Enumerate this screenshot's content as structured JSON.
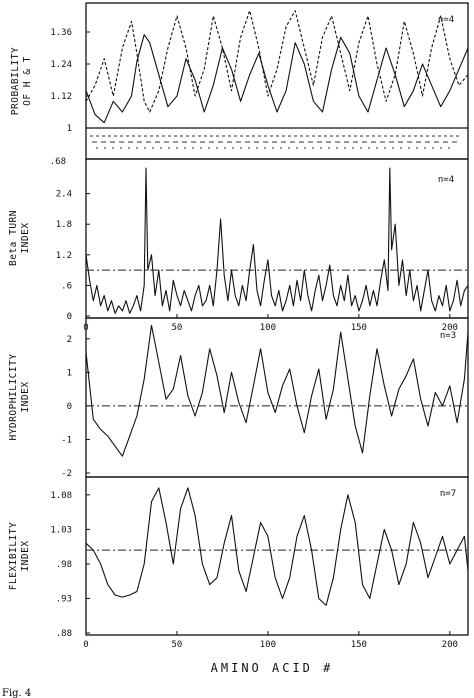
{
  "figure": {
    "xlabel": "AMINO ACID #",
    "caption": "Fig. 4"
  },
  "chart_data": [
    {
      "type": "line",
      "ylabel_lines": [
        "PROBABILITY",
        "OF H & T"
      ],
      "annotation": "n=4",
      "ylim": [
        1.0,
        1.45
      ],
      "yticks": [
        "1",
        "1.12",
        "1.24",
        "1.36"
      ],
      "ytick_values": [
        1.0,
        1.12,
        1.24,
        1.36
      ],
      "bottom_label": ".68",
      "xlim": [
        0,
        210
      ],
      "series": [
        {
          "style": "solid",
          "x": [
            0,
            5,
            10,
            15,
            20,
            25,
            28,
            32,
            35,
            40,
            45,
            50,
            55,
            60,
            65,
            70,
            75,
            80,
            85,
            90,
            95,
            100,
            105,
            110,
            115,
            120,
            125,
            130,
            135,
            140,
            145,
            150,
            155,
            160,
            165,
            170,
            175,
            180,
            185,
            190,
            195,
            200,
            205,
            210
          ],
          "y": [
            1.14,
            1.05,
            1.02,
            1.1,
            1.06,
            1.12,
            1.25,
            1.35,
            1.32,
            1.2,
            1.08,
            1.12,
            1.26,
            1.18,
            1.06,
            1.16,
            1.3,
            1.22,
            1.1,
            1.2,
            1.28,
            1.16,
            1.06,
            1.14,
            1.32,
            1.24,
            1.1,
            1.06,
            1.22,
            1.34,
            1.28,
            1.12,
            1.06,
            1.18,
            1.3,
            1.2,
            1.08,
            1.14,
            1.24,
            1.16,
            1.08,
            1.14,
            1.22,
            1.3
          ]
        },
        {
          "style": "dashed",
          "x": [
            0,
            5,
            10,
            15,
            20,
            25,
            28,
            32,
            35,
            40,
            45,
            50,
            55,
            60,
            65,
            70,
            75,
            80,
            85,
            90,
            95,
            100,
            105,
            110,
            115,
            120,
            125,
            130,
            135,
            140,
            145,
            150,
            155,
            160,
            165,
            170,
            175,
            180,
            185,
            190,
            195,
            200,
            205,
            210
          ],
          "y": [
            1.1,
            1.16,
            1.26,
            1.12,
            1.3,
            1.4,
            1.28,
            1.1,
            1.06,
            1.14,
            1.3,
            1.42,
            1.3,
            1.12,
            1.22,
            1.42,
            1.3,
            1.14,
            1.34,
            1.44,
            1.3,
            1.12,
            1.22,
            1.38,
            1.44,
            1.3,
            1.16,
            1.34,
            1.42,
            1.28,
            1.14,
            1.32,
            1.42,
            1.24,
            1.1,
            1.2,
            1.4,
            1.28,
            1.12,
            1.3,
            1.42,
            1.26,
            1.16,
            1.2
          ]
        }
      ]
    },
    {
      "type": "line",
      "ylabel_lines": [
        "Beta TURN",
        "INDEX"
      ],
      "annotation": "n=4",
      "ylim": [
        0,
        3.0
      ],
      "yticks": [
        "0",
        ".6",
        "1.2",
        "1.8",
        "2.4"
      ],
      "ytick_values": [
        0,
        0.6,
        1.2,
        1.8,
        2.4
      ],
      "reference_line": 0.9,
      "xlim": [
        0,
        210
      ],
      "xticks": [
        "0",
        "50",
        "100",
        "150",
        "200"
      ],
      "xtick_values": [
        0,
        50,
        100,
        150,
        200
      ],
      "series": [
        {
          "style": "solid",
          "x": [
            0,
            2,
            4,
            6,
            8,
            10,
            12,
            14,
            16,
            18,
            20,
            22,
            24,
            26,
            28,
            30,
            32,
            33,
            34,
            36,
            38,
            40,
            42,
            44,
            46,
            48,
            50,
            52,
            54,
            56,
            58,
            60,
            62,
            64,
            66,
            68,
            70,
            72,
            74,
            76,
            78,
            80,
            82,
            84,
            86,
            88,
            90,
            92,
            94,
            96,
            98,
            100,
            102,
            104,
            106,
            108,
            110,
            112,
            114,
            116,
            118,
            120,
            122,
            124,
            126,
            128,
            130,
            132,
            134,
            136,
            138,
            140,
            142,
            144,
            146,
            148,
            150,
            152,
            154,
            156,
            158,
            160,
            162,
            164,
            166,
            167,
            168,
            170,
            172,
            174,
            176,
            178,
            180,
            182,
            184,
            186,
            188,
            190,
            192,
            194,
            196,
            198,
            200,
            202,
            204,
            206,
            208,
            210
          ],
          "y": [
            1.2,
            0.7,
            0.3,
            0.6,
            0.2,
            0.4,
            0.1,
            0.3,
            0.05,
            0.2,
            0.1,
            0.3,
            0.05,
            0.2,
            0.4,
            0.1,
            0.6,
            2.9,
            0.9,
            1.2,
            0.4,
            0.9,
            0.2,
            0.5,
            0.1,
            0.7,
            0.4,
            0.2,
            0.5,
            0.3,
            0.1,
            0.4,
            0.6,
            0.2,
            0.3,
            0.6,
            0.2,
            0.9,
            1.9,
            0.8,
            0.3,
            0.9,
            0.4,
            0.2,
            0.6,
            0.3,
            0.9,
            1.4,
            0.5,
            0.2,
            0.7,
            1.1,
            0.4,
            0.2,
            0.5,
            0.1,
            0.3,
            0.6,
            0.2,
            0.7,
            0.3,
            0.9,
            0.4,
            0.1,
            0.5,
            0.8,
            0.3,
            0.6,
            1.0,
            0.4,
            0.2,
            0.6,
            0.3,
            0.8,
            0.2,
            0.4,
            0.1,
            0.3,
            0.6,
            0.2,
            0.5,
            0.2,
            0.7,
            1.1,
            0.5,
            2.9,
            1.3,
            1.8,
            0.6,
            1.1,
            0.4,
            0.9,
            0.3,
            0.6,
            0.1,
            0.5,
            0.9,
            0.3,
            0.1,
            0.4,
            0.2,
            0.6,
            0.1,
            0.3,
            0.7,
            0.2,
            0.5,
            0.6
          ]
        }
      ]
    },
    {
      "type": "line",
      "ylabel_lines": [
        "HYDROPHILICITY",
        "INDEX"
      ],
      "annotation": "n=3",
      "ylim": [
        -2,
        2.5
      ],
      "yticks": [
        "-2",
        "-1",
        "0",
        "1",
        "2"
      ],
      "ytick_values": [
        -2,
        -1,
        0,
        1,
        2
      ],
      "reference_line": 0,
      "xlim": [
        0,
        210
      ],
      "series": [
        {
          "style": "solid",
          "x": [
            0,
            4,
            8,
            12,
            16,
            20,
            24,
            28,
            32,
            36,
            40,
            44,
            48,
            52,
            56,
            60,
            64,
            68,
            72,
            76,
            80,
            84,
            88,
            92,
            96,
            100,
            104,
            108,
            112,
            116,
            120,
            124,
            128,
            132,
            136,
            140,
            144,
            148,
            152,
            156,
            160,
            164,
            168,
            172,
            176,
            180,
            184,
            188,
            192,
            196,
            200,
            204,
            208,
            210
          ],
          "y": [
            1.6,
            -0.4,
            -0.7,
            -0.9,
            -1.2,
            -1.5,
            -0.9,
            -0.3,
            0.8,
            2.4,
            1.3,
            0.2,
            0.5,
            1.5,
            0.3,
            -0.3,
            0.4,
            1.7,
            0.9,
            -0.2,
            1.0,
            0.1,
            -0.5,
            0.6,
            1.7,
            0.4,
            -0.2,
            0.6,
            1.1,
            0.0,
            -0.8,
            0.3,
            1.1,
            -0.4,
            0.5,
            2.2,
            0.8,
            -0.6,
            -1.4,
            0.3,
            1.7,
            0.6,
            -0.3,
            0.5,
            0.9,
            1.4,
            0.2,
            -0.6,
            0.4,
            0.0,
            0.6,
            -0.5,
            0.8,
            2.2
          ]
        }
      ]
    },
    {
      "type": "line",
      "ylabel_lines": [
        "FLEXIBILITY",
        "INDEX"
      ],
      "annotation": "n=7",
      "ylim": [
        0.88,
        1.1
      ],
      "yticks": [
        ".88",
        ".93",
        ".98",
        "1.03",
        "1.08"
      ],
      "ytick_values": [
        0.88,
        0.93,
        0.98,
        1.03,
        1.08
      ],
      "reference_line": 1.0,
      "xlim": [
        0,
        210
      ],
      "xticks": [
        "0",
        "50",
        "100",
        "150",
        "200"
      ],
      "xtick_values": [
        0,
        50,
        100,
        150,
        200
      ],
      "series": [
        {
          "style": "solid",
          "x": [
            0,
            4,
            8,
            12,
            16,
            20,
            24,
            28,
            32,
            36,
            40,
            44,
            48,
            52,
            56,
            60,
            64,
            68,
            72,
            76,
            80,
            84,
            88,
            92,
            96,
            100,
            104,
            108,
            112,
            116,
            120,
            124,
            128,
            132,
            136,
            140,
            144,
            148,
            152,
            156,
            160,
            164,
            168,
            172,
            176,
            180,
            184,
            188,
            192,
            196,
            200,
            204,
            208,
            210
          ],
          "y": [
            1.01,
            1.0,
            0.98,
            0.95,
            0.935,
            0.932,
            0.935,
            0.94,
            0.98,
            1.07,
            1.09,
            1.04,
            0.98,
            1.06,
            1.09,
            1.05,
            0.98,
            0.95,
            0.96,
            1.01,
            1.05,
            0.97,
            0.94,
            0.99,
            1.04,
            1.02,
            0.96,
            0.93,
            0.96,
            1.02,
            1.05,
            1.0,
            0.93,
            0.92,
            0.96,
            1.03,
            1.08,
            1.04,
            0.95,
            0.93,
            0.98,
            1.03,
            1.0,
            0.95,
            0.98,
            1.04,
            1.01,
            0.96,
            0.99,
            1.02,
            0.98,
            1.0,
            1.02,
            0.97
          ]
        }
      ]
    }
  ]
}
